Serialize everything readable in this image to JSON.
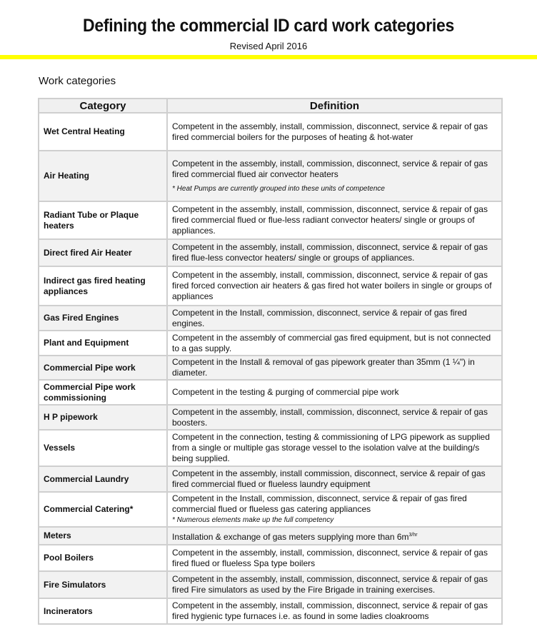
{
  "title": "Defining the commercial ID card work categories",
  "subtitle": "Revised April 2016",
  "section_heading": "Work categories",
  "table": {
    "headers": [
      "Category",
      "Definition"
    ],
    "rows": [
      {
        "category": "Wet Central Heating",
        "definition": "Competent in the assembly, install, commission, disconnect, service & repair of gas fired commercial boilers for the purposes of heating & hot-water"
      },
      {
        "category": "Air Heating",
        "definition": "Competent in the assembly, install, commission, disconnect, service & repair of gas fired commercial flued air convector heaters",
        "note": "* Heat Pumps are currently grouped into these units of competence"
      },
      {
        "category": "Radiant Tube or Plaque heaters",
        "definition": "Competent in the assembly, install, commission, disconnect, service & repair of gas fired commercial flued or flue-less radiant convector heaters/ single or groups of appliances."
      },
      {
        "category": "Direct fired Air Heater",
        "definition": "Competent in the assembly, install, commission, disconnect, service & repair of gas fired flue-less convector heaters/ single or groups of appliances."
      },
      {
        "category": "Indirect gas fired heating appliances",
        "definition": "Competent in the assembly, install, commission, disconnect, service & repair of gas fired forced convection air heaters & gas fired hot water boilers in single or groups of appliances"
      },
      {
        "category": "Gas Fired Engines",
        "definition": "Competent in the Install, commission, disconnect, service & repair of gas fired engines."
      },
      {
        "category": "Plant and Equipment",
        "definition": "Competent in the assembly of commercial gas fired equipment, but is not connected to a gas supply."
      },
      {
        "category": "Commercial Pipe work",
        "definition": "Competent in the Install & removal of gas pipework greater than 35mm (1 ¼\") in diameter."
      },
      {
        "category": "Commercial Pipe work commissioning",
        "definition": "Competent in the testing & purging of commercial pipe work"
      },
      {
        "category": "H P pipework",
        "definition": "Competent in the assembly, install, commission, disconnect, service & repair of gas boosters."
      },
      {
        "category": "Vessels",
        "definition": "Competent in the connection, testing & commissioning of LPG pipework as supplied from a single or multiple gas storage vessel to the isolation valve at the building/s being supplied."
      },
      {
        "category": "Commercial Laundry",
        "definition": "Competent in the assembly, install commission, disconnect, service & repair of gas fired commercial flued or flueless laundry equipment"
      },
      {
        "category": "Commercial Catering*",
        "definition": "Competent in the Install, commission, disconnect, service & repair of gas fired commercial flued or flueless gas catering appliances",
        "note": "* Numerous elements make up the full competency",
        "note_tight": true
      },
      {
        "category": "Meters",
        "definition": "Installation & exchange of gas meters supplying more than 6m",
        "sup": "3/hr"
      },
      {
        "category": "Pool Boilers",
        "definition": "Competent in the assembly, install, commission, disconnect, service & repair of gas fired flued or flueless Spa type boilers"
      },
      {
        "category": "Fire Simulators",
        "definition": "Competent in the assembly, install, commission, disconnect, service & repair of gas fired Fire simulators as used by the Fire Brigade in training exercises."
      },
      {
        "category": "Incinerators",
        "definition": "Competent in the assembly, install, commission, disconnect, service & repair of gas fired hygienic type furnaces i.e. as found in some ladies cloakrooms"
      }
    ]
  }
}
